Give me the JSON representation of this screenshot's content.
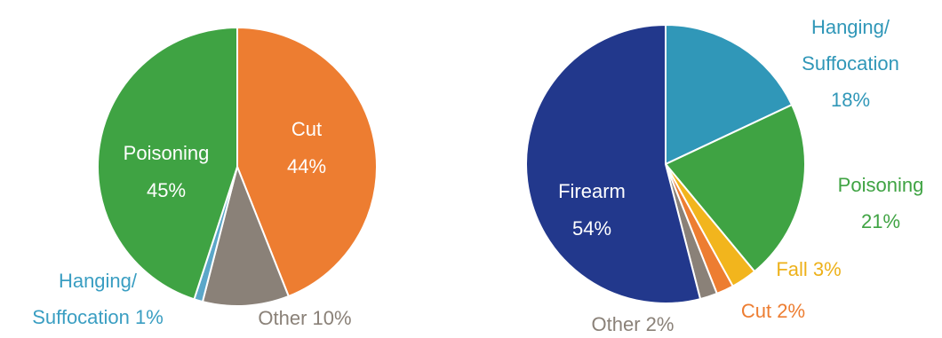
{
  "chart_data": [
    {
      "type": "pie",
      "title": "",
      "slices": [
        {
          "label": "Cut",
          "value": 44,
          "value_label": "44%",
          "color": "#ED7D31",
          "label_style": "inside"
        },
        {
          "label": "Other",
          "value": 10,
          "value_label": "10%",
          "color": "#8A8178",
          "label_style": "outside-inline"
        },
        {
          "label": "Hanging/ Suffocation",
          "value": 1,
          "value_label": "1%",
          "color": "#5BA7C9",
          "label_style": "outside"
        },
        {
          "label": "Poisoning",
          "value": 45,
          "value_label": "45%",
          "color": "#3FA343",
          "label_style": "inside"
        }
      ]
    },
    {
      "type": "pie",
      "title": "",
      "slices": [
        {
          "label": "Hanging/ Suffocation",
          "value": 18,
          "value_label": "18%",
          "color": "#3097B8",
          "label_style": "outside"
        },
        {
          "label": "Poisoning",
          "value": 21,
          "value_label": "21%",
          "color": "#3FA343",
          "label_style": "outside"
        },
        {
          "label": "Fall",
          "value": 3,
          "value_label": "3%",
          "color": "#F2B51D",
          "label_style": "outside-inline"
        },
        {
          "label": "Cut",
          "value": 2,
          "value_label": "2%",
          "color": "#ED7D31",
          "label_style": "outside-inline"
        },
        {
          "label": "Other",
          "value": 2,
          "value_label": "2%",
          "color": "#8A8178",
          "label_style": "outside-inline"
        },
        {
          "label": "Firearm",
          "value": 54,
          "value_label": "54%",
          "color": "#22388C",
          "label_style": "inside"
        }
      ]
    }
  ]
}
